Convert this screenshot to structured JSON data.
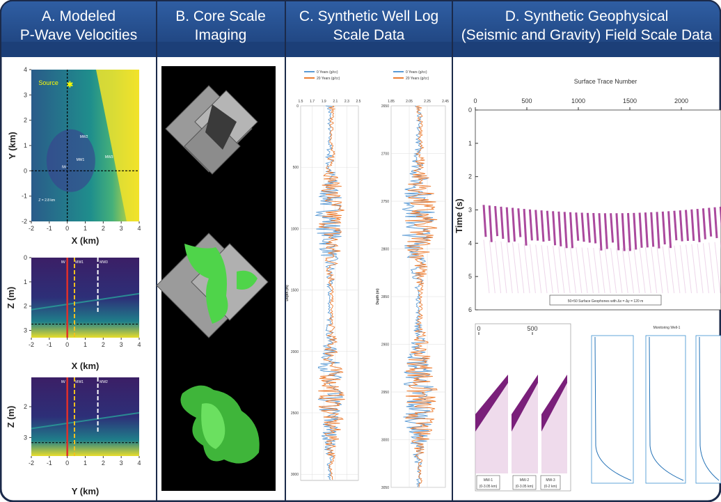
{
  "headers": [
    [
      "A. Modeled",
      "P-Wave Velocities"
    ],
    [
      "B. Core Scale",
      "Imaging"
    ],
    [
      "C. Synthetic Well Log",
      "Scale Data"
    ],
    [
      "D. Synthetic Geophysical",
      "(Seismic and Gravity) Field Scale Data"
    ]
  ],
  "panel_a": {
    "map": {
      "y_label": "Y (km)",
      "x_label": "X (km)",
      "yticks": [
        4,
        3,
        2,
        1,
        0,
        -1,
        -2
      ],
      "xticks": [
        -2,
        -1,
        0,
        1,
        2,
        3,
        4
      ],
      "annotations": [
        "Source",
        "MW2",
        "MW1",
        "MW3",
        "IW",
        "Z = 2.8 km"
      ]
    },
    "section_x": {
      "y_label": "Z (m)",
      "x_label": "X (km)",
      "yticks": [
        0,
        1,
        2,
        3
      ],
      "xticks": [
        -2,
        -1,
        0,
        1,
        2,
        3,
        4
      ],
      "annotations": [
        "IW",
        "MW1",
        "MW3"
      ]
    },
    "section_y": {
      "y_label": "Z (m)",
      "x_label": "Y (km)",
      "yticks": [
        2,
        3
      ],
      "xticks": [
        -2,
        -1,
        0,
        1,
        2,
        3,
        4
      ],
      "annotations": [
        "IW",
        "MW1",
        "MW2"
      ]
    }
  },
  "panel_c": {
    "legend": [
      "0 Years (g/cc)",
      "20 Years (g/cc)"
    ],
    "y_label": "Depth (m)",
    "track_1": {
      "xticks": [
        1.5,
        1.7,
        1.9,
        2.1,
        2.3,
        2.5
      ],
      "yticks": [
        0,
        500,
        1000,
        1500,
        2000,
        2500,
        3000
      ]
    },
    "track_2": {
      "xticks": [
        1.85,
        2.05,
        2.25,
        2.45
      ],
      "yticks": [
        2650,
        2700,
        2750,
        2800,
        2850,
        2900,
        2950,
        3000,
        3050
      ]
    }
  },
  "panel_d": {
    "seismic": {
      "x_label": "Surface Trace Number",
      "xticks": [
        0,
        500,
        1000,
        1500,
        2000
      ],
      "y_label": "Time (s)",
      "yticks": [
        0,
        1,
        2,
        3,
        4,
        5,
        6
      ],
      "annotation": "50×50 Surface Geophones with Δx = Δy = 120 m"
    },
    "wells": {
      "xticks": [
        0,
        500
      ],
      "labels": [
        [
          "MW-1",
          "(0-3.05 km)"
        ],
        [
          "MW-2",
          "(0-3.05 km)"
        ],
        [
          "MW-3",
          "(0-2 km)"
        ]
      ]
    },
    "gravity": {
      "title": "Monitoring Well-1"
    }
  }
}
